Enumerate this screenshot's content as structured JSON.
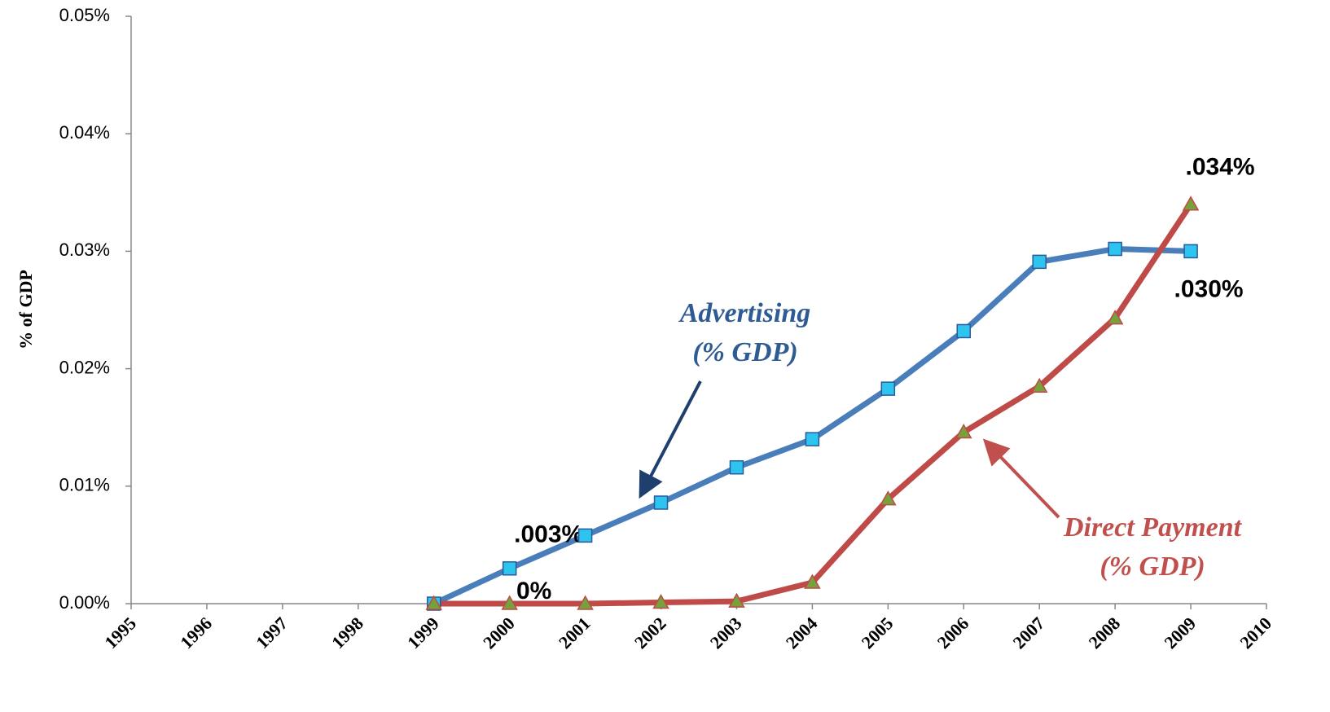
{
  "chart_data": {
    "type": "line",
    "y_label": "% of GDP",
    "x": [
      1995,
      1996,
      1997,
      1998,
      1999,
      2000,
      2001,
      2002,
      2003,
      2004,
      2005,
      2006,
      2007,
      2008,
      2009,
      2010
    ],
    "xlim": [
      1995,
      2010
    ],
    "xticks": [
      1995,
      1996,
      1997,
      1998,
      1999,
      2000,
      2001,
      2002,
      2003,
      2004,
      2005,
      2006,
      2007,
      2008,
      2009,
      2010
    ],
    "ylim": [
      0,
      0.05
    ],
    "yticks": [
      {
        "value": 0,
        "label": "0.00%"
      },
      {
        "value": 0.01,
        "label": "0.01%"
      },
      {
        "value": 0.02,
        "label": "0.02%"
      },
      {
        "value": 0.03,
        "label": "0.03%"
      },
      {
        "value": 0.04,
        "label": "0.04%"
      },
      {
        "value": 0.05,
        "label": "0.05%"
      }
    ],
    "grid": false,
    "series": [
      {
        "name": "Advertising",
        "color": "#4a7ebb",
        "marker": "square",
        "marker_color": "#2ec4f0",
        "values": [
          null,
          null,
          null,
          null,
          0,
          0.003,
          0.0058,
          0.0086,
          0.0116,
          0.014,
          0.0183,
          0.0232,
          0.0291,
          0.0302,
          0.03,
          null
        ],
        "value_labels": [
          null,
          null,
          null,
          null,
          null,
          ".003%",
          null,
          null,
          null,
          null,
          null,
          null,
          null,
          null,
          ".030%",
          null
        ]
      },
      {
        "name": "Direct Payment",
        "color": "#be4b48",
        "marker": "triangle",
        "marker_color": "#77a13b",
        "values": [
          null,
          null,
          null,
          null,
          0,
          0,
          0,
          0.0001,
          0.0002,
          0.0018,
          0.0089,
          0.0146,
          0.0185,
          0.0243,
          0.034,
          null
        ],
        "value_labels": [
          null,
          null,
          null,
          null,
          null,
          "0%",
          null,
          null,
          null,
          null,
          null,
          null,
          null,
          null,
          ".034%",
          null
        ]
      }
    ],
    "annotations": [
      {
        "lines": [
          "Advertising",
          "(% GDP)"
        ],
        "color": "#2f5b94"
      },
      {
        "lines": [
          "Direct Payment",
          "(% GDP)"
        ],
        "color": "#c0504d"
      }
    ]
  }
}
